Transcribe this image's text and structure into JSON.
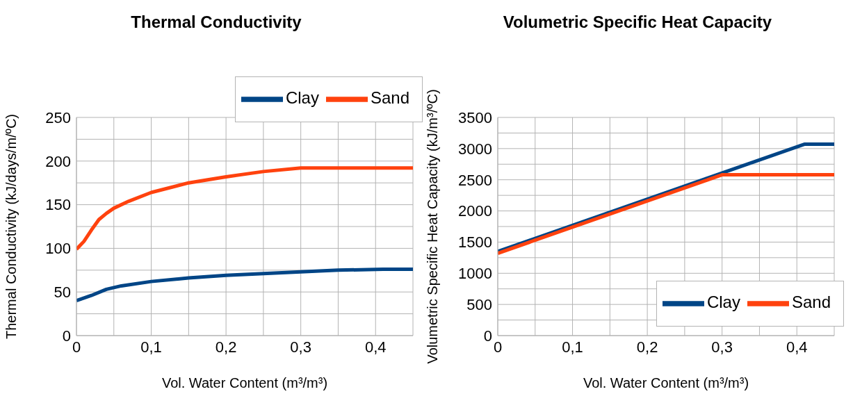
{
  "chart_data": [
    {
      "type": "line",
      "title": "Thermal Conductivity",
      "xlabel": "Vol. Water Content (m³/m³)",
      "ylabel": "Thermal Conductivity (kJ/days/m/ºC)",
      "xlim": [
        0,
        0.45
      ],
      "xticks": [
        0,
        {
          "value": 0.05,
          "label": null
        },
        {
          "value": 0.1,
          "label": "0,1"
        },
        {
          "value": 0.15,
          "label": null
        },
        {
          "value": 0.2,
          "label": "0,2"
        },
        {
          "value": 0.25,
          "label": null
        },
        {
          "value": 0.3,
          "label": "0,3"
        },
        {
          "value": 0.35,
          "label": null
        },
        {
          "value": 0.4,
          "label": "0,4"
        }
      ],
      "ylim": [
        0,
        250
      ],
      "yticks": [
        0,
        {
          "value": 25,
          "label": null
        },
        50,
        {
          "value": 75,
          "label": null
        },
        100,
        {
          "value": 125,
          "label": null
        },
        150,
        {
          "value": 175,
          "label": null
        },
        200,
        {
          "value": 225,
          "label": null
        },
        250
      ],
      "grid": true,
      "legend": "top right",
      "series": [
        {
          "name": "Clay",
          "color": "#004586",
          "x": [
            0,
            0.02,
            0.04,
            0.06,
            0.1,
            0.15,
            0.2,
            0.25,
            0.3,
            0.35,
            0.41,
            0.45
          ],
          "values": [
            40,
            46,
            53,
            57,
            62,
            66,
            69,
            71,
            73,
            75,
            76,
            76
          ]
        },
        {
          "name": "Sand",
          "color": "#ff420e",
          "x": [
            0,
            0.01,
            0.02,
            0.03,
            0.04,
            0.05,
            0.07,
            0.1,
            0.15,
            0.2,
            0.25,
            0.3,
            0.45
          ],
          "values": [
            99,
            108,
            121,
            133,
            140,
            146,
            154,
            164,
            175,
            182,
            188,
            192,
            192
          ]
        }
      ]
    },
    {
      "type": "line",
      "title": "Volumetric Specific Heat Capacity",
      "xlabel": "Vol. Water Content (m³/m³)",
      "ylabel": "Volumetric Specific Heat Capacity (kJ/m³/ºC)",
      "xlim": [
        0,
        0.45
      ],
      "xticks": [
        0,
        {
          "value": 0.05,
          "label": null
        },
        {
          "value": 0.1,
          "label": "0,1"
        },
        {
          "value": 0.15,
          "label": null
        },
        {
          "value": 0.2,
          "label": "0,2"
        },
        {
          "value": 0.25,
          "label": null
        },
        {
          "value": 0.3,
          "label": "0,3"
        },
        {
          "value": 0.35,
          "label": null
        },
        {
          "value": 0.4,
          "label": "0,4"
        }
      ],
      "ylim": [
        0,
        3500
      ],
      "yticks": [
        0,
        {
          "value": 250,
          "label": null
        },
        500,
        {
          "value": 750,
          "label": null
        },
        1000,
        {
          "value": 1250,
          "label": null
        },
        1500,
        {
          "value": 1750,
          "label": null
        },
        2000,
        {
          "value": 2250,
          "label": null
        },
        2500,
        {
          "value": 2750,
          "label": null
        },
        3000,
        {
          "value": 3250,
          "label": null
        },
        3500
      ],
      "grid": true,
      "legend": "bottom right",
      "series": [
        {
          "name": "Clay",
          "color": "#004586",
          "x": [
            0,
            0.41,
            0.45
          ],
          "values": [
            1350,
            3070,
            3070
          ]
        },
        {
          "name": "Sand",
          "color": "#ff420e",
          "x": [
            0,
            0.3,
            0.45
          ],
          "values": [
            1320,
            2580,
            2580
          ]
        }
      ]
    }
  ]
}
